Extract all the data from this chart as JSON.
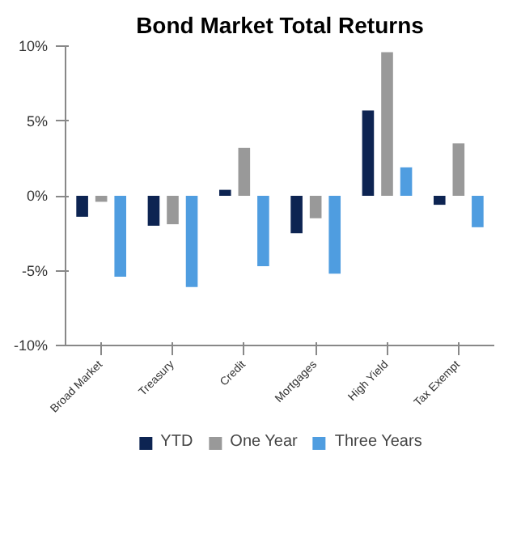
{
  "chart_data": {
    "type": "bar",
    "title": "Bond Market Total Returns",
    "categories": [
      "Broad Market",
      "Treasury",
      "Credit",
      "Mortgages",
      "High Yield",
      "Tax Exempt"
    ],
    "series": [
      {
        "name": "YTD",
        "color": "#0d2452",
        "values": [
          -1.4,
          -2.0,
          0.4,
          -2.5,
          5.7,
          -0.6
        ]
      },
      {
        "name": "One Year",
        "color": "#999999",
        "values": [
          -0.4,
          -1.9,
          3.2,
          -1.5,
          9.6,
          3.5
        ]
      },
      {
        "name": "Three Years",
        "color": "#4f9de0",
        "values": [
          -5.4,
          -6.1,
          -4.7,
          -5.2,
          1.9,
          -2.1
        ]
      }
    ],
    "ylim": [
      -10,
      10
    ],
    "yticks": [
      {
        "value": -10,
        "label": "-10%"
      },
      {
        "value": -5,
        "label": "-5%"
      },
      {
        "value": 0,
        "label": "0%"
      },
      {
        "value": 5,
        "label": "5%"
      },
      {
        "value": 10,
        "label": "10%"
      }
    ],
    "grid": false,
    "legend": "bottom"
  }
}
